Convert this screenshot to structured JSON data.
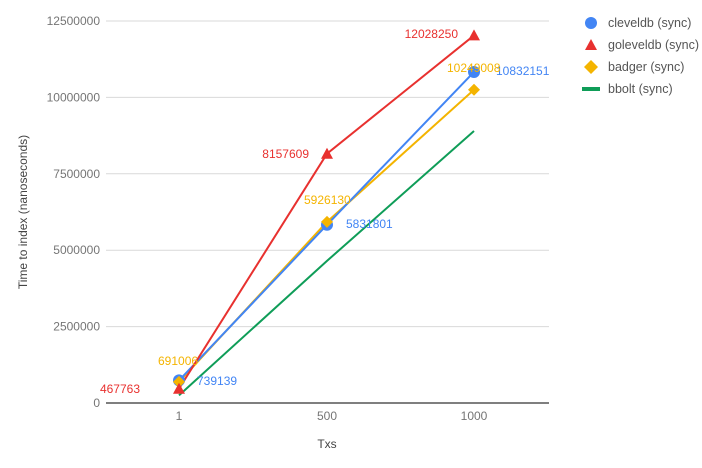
{
  "chart_data": {
    "type": "line",
    "title": "",
    "xlabel": "Txs",
    "ylabel": "Time to index (nanoseconds)",
    "categories": [
      "1",
      "500",
      "1000"
    ],
    "ylim": [
      0,
      12500000
    ],
    "yticks": [
      "0",
      "2500000",
      "5000000",
      "7500000",
      "10000000",
      "12500000"
    ],
    "grid": true,
    "legend_position": "right",
    "series": [
      {
        "name": "cleveldb (sync)",
        "color": "#4285F4",
        "marker": "circle",
        "values": [
          739139,
          5831801,
          10832151
        ],
        "labels": [
          "739139",
          "5831801",
          "10832151"
        ]
      },
      {
        "name": "goleveldb (sync)",
        "color": "#E8312F",
        "marker": "triangle",
        "values": [
          467763,
          8157609,
          12028250
        ],
        "labels": [
          "467763",
          "8157609",
          "12028250"
        ]
      },
      {
        "name": "badger (sync)",
        "color": "#F4B400",
        "marker": "diamond",
        "values": [
          691006,
          5926130,
          10249008
        ],
        "labels": [
          "691006",
          "5926130",
          "10249008"
        ]
      },
      {
        "name": "bbolt (sync)",
        "color": "#0F9D58",
        "marker": "none",
        "values": [
          250000,
          4650000,
          8900000
        ],
        "labels": []
      }
    ]
  },
  "legend": {
    "items": [
      {
        "label": "cleveldb (sync)"
      },
      {
        "label": "goleveldb (sync)"
      },
      {
        "label": "badger (sync)"
      },
      {
        "label": "bbolt (sync)"
      }
    ]
  }
}
